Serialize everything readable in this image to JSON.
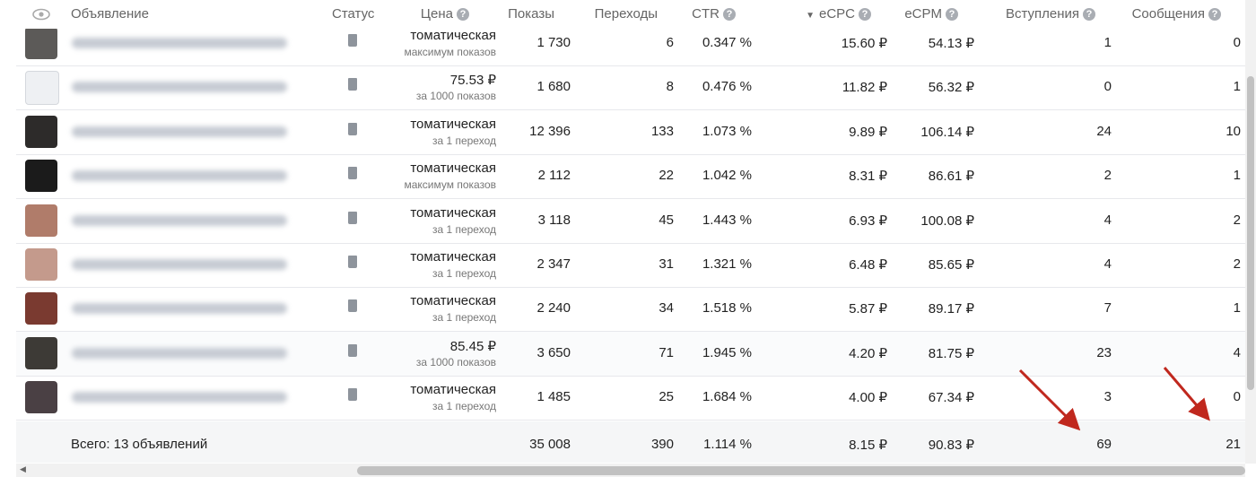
{
  "header": {
    "columns": {
      "ad": "Объявление",
      "status": "Статус",
      "price": "Цена",
      "impressions": "Показы",
      "clicks": "Переходы",
      "ctr": "CTR",
      "ecpc": "eCPC",
      "ecpm": "eCPM",
      "joins": "Вступления",
      "messages": "Сообщения"
    }
  },
  "rows": [
    {
      "price": "томатическая",
      "price_note": "максимум показов",
      "impressions": "1 730",
      "clicks": "6",
      "ctr": "0.347 %",
      "ecpc": "15.60 ₽",
      "ecpm": "54.13 ₽",
      "joins": "1",
      "messages": "0"
    },
    {
      "price": "75.53 ₽",
      "price_note": "за 1000 показов",
      "impressions": "1 680",
      "clicks": "8",
      "ctr": "0.476 %",
      "ecpc": "11.82 ₽",
      "ecpm": "56.32 ₽",
      "joins": "0",
      "messages": "1"
    },
    {
      "price": "томатическая",
      "price_note": "за 1 переход",
      "impressions": "12 396",
      "clicks": "133",
      "ctr": "1.073 %",
      "ecpc": "9.89 ₽",
      "ecpm": "106.14 ₽",
      "joins": "24",
      "messages": "10"
    },
    {
      "price": "томатическая",
      "price_note": "максимум показов",
      "impressions": "2 112",
      "clicks": "22",
      "ctr": "1.042 %",
      "ecpc": "8.31 ₽",
      "ecpm": "86.61 ₽",
      "joins": "2",
      "messages": "1"
    },
    {
      "price": "томатическая",
      "price_note": "за 1 переход",
      "impressions": "3 118",
      "clicks": "45",
      "ctr": "1.443 %",
      "ecpc": "6.93 ₽",
      "ecpm": "100.08 ₽",
      "joins": "4",
      "messages": "2"
    },
    {
      "price": "томатическая",
      "price_note": "за 1 переход",
      "impressions": "2 347",
      "clicks": "31",
      "ctr": "1.321 %",
      "ecpc": "6.48 ₽",
      "ecpm": "85.65 ₽",
      "joins": "4",
      "messages": "2"
    },
    {
      "price": "томатическая",
      "price_note": "за 1 переход",
      "impressions": "2 240",
      "clicks": "34",
      "ctr": "1.518 %",
      "ecpc": "5.87 ₽",
      "ecpm": "89.17 ₽",
      "joins": "7",
      "messages": "1"
    },
    {
      "price": "85.45 ₽",
      "price_note": "за 1000 показов",
      "impressions": "3 650",
      "clicks": "71",
      "ctr": "1.945 %",
      "ecpc": "4.20 ₽",
      "ecpm": "81.75 ₽",
      "joins": "23",
      "messages": "4"
    },
    {
      "price": "томатическая",
      "price_note": "за 1 переход",
      "impressions": "1 485",
      "clicks": "25",
      "ctr": "1.684 %",
      "ecpc": "4.00 ₽",
      "ecpm": "67.34 ₽",
      "joins": "3",
      "messages": "0"
    }
  ],
  "footer": {
    "total": "Всего: 13 объявлений",
    "impressions": "35 008",
    "clicks": "390",
    "ctr": "1.114 %",
    "ecpc": "8.15 ₽",
    "ecpm": "90.83 ₽",
    "joins": "69",
    "messages": "21"
  }
}
